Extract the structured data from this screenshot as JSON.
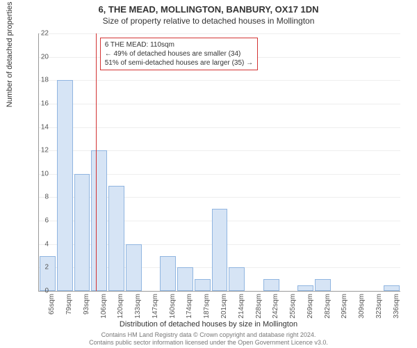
{
  "title_main": "6, THE MEAD, MOLLINGTON, BANBURY, OX17 1DN",
  "title_sub": "Size of property relative to detached houses in Mollington",
  "y_axis_title": "Number of detached properties",
  "x_axis_title": "Distribution of detached houses by size in Mollington",
  "footer_line1": "Contains HM Land Registry data © Crown copyright and database right 2024.",
  "footer_line2": "Contains public sector information licensed under the Open Government Licence v3.0.",
  "chart": {
    "type": "histogram",
    "y_min": 0,
    "y_max": 22,
    "y_tick_step": 2,
    "x_categories": [
      "65sqm",
      "79sqm",
      "93sqm",
      "106sqm",
      "120sqm",
      "133sqm",
      "147sqm",
      "160sqm",
      "174sqm",
      "187sqm",
      "201sqm",
      "214sqm",
      "228sqm",
      "242sqm",
      "255sqm",
      "269sqm",
      "282sqm",
      "295sqm",
      "309sqm",
      "323sqm",
      "336sqm"
    ],
    "bar_values": [
      3,
      18,
      10,
      12,
      9,
      4,
      0,
      3,
      2,
      1,
      7,
      2,
      0,
      1,
      0,
      0.5,
      1,
      0,
      0,
      0,
      0.5
    ],
    "bar_color": "#d6e4f5",
    "bar_border": "#90b5e0",
    "grid_color": "#eeeeee",
    "axis_color": "#999999",
    "background_color": "#ffffff",
    "bar_width_ratio": 0.92
  },
  "marker": {
    "line_color": "#d33333",
    "x_position_category_index": 3.3,
    "callout_border": "#d33333",
    "callout_line1": "6 THE MEAD: 110sqm",
    "callout_line2": "← 49% of detached houses are smaller (34)",
    "callout_line3": "51% of semi-detached houses are larger (35) →"
  }
}
